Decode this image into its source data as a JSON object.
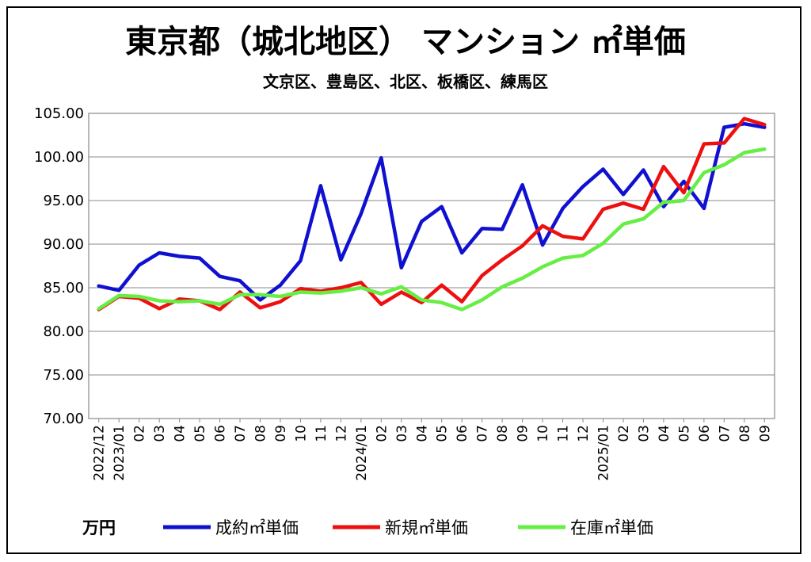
{
  "chart_data": {
    "type": "line",
    "title": "東京都（城北地区） マンション ㎡単価",
    "subtitle": "文京区、豊島区、北区、板橋区、練馬区",
    "unit_label": "万円",
    "ylim": [
      70,
      105
    ],
    "yticks": [
      "105.00",
      "100.00",
      "95.00",
      "90.00",
      "85.00",
      "80.00",
      "75.00",
      "70.00"
    ],
    "ytick_values": [
      105,
      100,
      95,
      90,
      85,
      80,
      75,
      70
    ],
    "grid": true,
    "legend_position": "bottom",
    "x_labels": [
      "2022/12",
      "2023/01",
      "02",
      "03",
      "04",
      "05",
      "06",
      "07",
      "08",
      "09",
      "10",
      "11",
      "12",
      "2024/01",
      "02",
      "03",
      "04",
      "05",
      "06",
      "07",
      "08",
      "09",
      "10",
      "11",
      "12",
      "2025/01",
      "02",
      "03",
      "04",
      "05",
      "06",
      "07",
      "08",
      "09"
    ],
    "series": [
      {
        "name": "成約㎡単価",
        "color": "#1010d0",
        "values": [
          85.2,
          84.7,
          87.6,
          89.0,
          88.6,
          88.4,
          86.3,
          85.8,
          83.6,
          85.3,
          88.1,
          96.7,
          88.2,
          93.5,
          99.9,
          87.3,
          92.6,
          94.3,
          89.0,
          91.8,
          91.7,
          96.8,
          89.9,
          94.1,
          96.6,
          98.6,
          95.7,
          98.5,
          94.3,
          97.2,
          94.1,
          103.4,
          103.8,
          103.4
        ]
      },
      {
        "name": "新規㎡単価",
        "color": "#ee1010",
        "values": [
          82.5,
          84.0,
          83.8,
          82.6,
          83.7,
          83.5,
          82.5,
          84.5,
          82.7,
          83.4,
          84.9,
          84.6,
          85.0,
          85.6,
          83.1,
          84.5,
          83.3,
          85.3,
          83.4,
          86.4,
          88.2,
          89.8,
          92.1,
          90.9,
          90.6,
          94.0,
          94.7,
          94.0,
          98.9,
          95.9,
          101.5,
          101.6,
          104.4,
          103.7
        ]
      },
      {
        "name": "在庫㎡単価",
        "color": "#66ee44",
        "values": [
          82.6,
          84.1,
          84.0,
          83.5,
          83.4,
          83.5,
          83.1,
          84.2,
          84.2,
          84.0,
          84.5,
          84.4,
          84.6,
          85.0,
          84.3,
          85.1,
          83.6,
          83.3,
          82.5,
          83.6,
          85.1,
          86.1,
          87.4,
          88.4,
          88.7,
          90.1,
          92.3,
          92.9,
          94.8,
          95.0,
          98.2,
          99.1,
          100.5,
          100.9
        ]
      }
    ]
  }
}
